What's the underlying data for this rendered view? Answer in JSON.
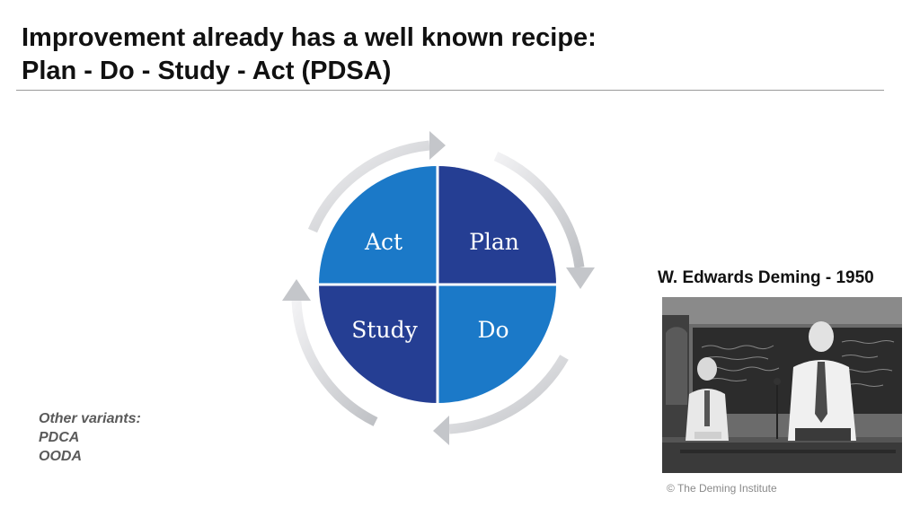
{
  "slide": {
    "title_line1": "Improvement already has a well known recipe:",
    "title_line2": "Plan - Do - Study - Act  (PDSA)"
  },
  "cycle": {
    "quadrants": {
      "act": "Act",
      "plan": "Plan",
      "study": "Study",
      "do": "Do"
    },
    "colors": {
      "dark_blue": "#253e93",
      "light_blue": "#1b79c8",
      "arrow": "#cfd0d3"
    }
  },
  "variants": {
    "heading": "Other variants:",
    "items": [
      "PDCA",
      "OODA"
    ]
  },
  "photo": {
    "caption": "W. Edwards Deming - 1950",
    "credit": "© The Deming Institute"
  }
}
